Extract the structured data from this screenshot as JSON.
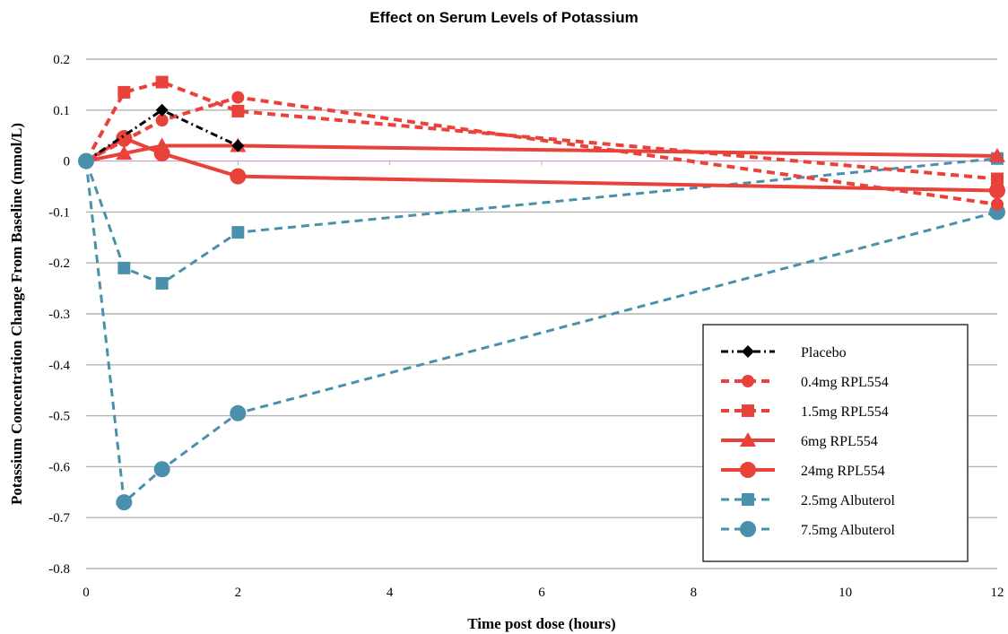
{
  "chart_data": {
    "type": "line",
    "title": "Effect on Serum Levels of Potassium",
    "xlabel": "Time post dose (hours)",
    "ylabel": "Potassium Concentration Change From Baseline (mmol/L)",
    "xlim": [
      0,
      12
    ],
    "ylim": [
      -0.8,
      0.2
    ],
    "xticks": [
      0,
      2,
      4,
      6,
      8,
      10,
      12
    ],
    "yticks": [
      0.2,
      0.1,
      0,
      -0.1,
      -0.2,
      -0.3,
      -0.4,
      -0.5,
      -0.6,
      -0.7,
      -0.8
    ],
    "xtick_labels": [
      "0",
      "2",
      "4",
      "6",
      "8",
      "10",
      "12"
    ],
    "ytick_labels": [
      "0.2",
      "0.1",
      "0",
      "-0.1",
      "-0.2",
      "-0.3",
      "-0.4",
      "-0.5",
      "-0.6",
      "-0.7",
      "-0.8"
    ],
    "grid": "horizontal",
    "legend_position": "bottom-right",
    "series": [
      {
        "name": "Placebo",
        "color": "#000000",
        "marker": "diamond",
        "dash": "dashdot",
        "x": [
          0,
          1,
          2
        ],
        "y": [
          0.0,
          0.1,
          0.03
        ]
      },
      {
        "name": "0.4mg RPL554",
        "color": "#e8423a",
        "marker": "circle",
        "dash": "dashed",
        "x": [
          0,
          0.5,
          1,
          2,
          12
        ],
        "y": [
          0.0,
          0.04,
          0.08,
          0.125,
          -0.085
        ]
      },
      {
        "name": "1.5mg RPL554",
        "color": "#e8423a",
        "marker": "square",
        "dash": "dashed",
        "x": [
          0,
          0.5,
          1,
          2,
          12
        ],
        "y": [
          0.0,
          0.135,
          0.155,
          0.098,
          -0.035
        ]
      },
      {
        "name": "6mg RPL554",
        "color": "#e8423a",
        "marker": "triangle",
        "dash": "solid",
        "x": [
          0,
          0.5,
          1,
          2,
          12
        ],
        "y": [
          0.0,
          0.015,
          0.03,
          0.03,
          0.01
        ]
      },
      {
        "name": "24mg RPL554",
        "color": "#e8423a",
        "marker": "circle-large",
        "dash": "solid",
        "x": [
          0,
          0.5,
          1,
          2,
          12
        ],
        "y": [
          0.0,
          0.045,
          0.015,
          -0.03,
          -0.058
        ]
      },
      {
        "name": "2.5mg Albuterol",
        "color": "#4a8fac",
        "marker": "square",
        "dash": "dashed",
        "x": [
          0,
          0.5,
          1,
          2,
          12
        ],
        "y": [
          0.0,
          -0.21,
          -0.24,
          -0.14,
          0.005
        ]
      },
      {
        "name": "7.5mg Albuterol",
        "color": "#4a8fac",
        "marker": "circle-large",
        "dash": "dashed",
        "x": [
          0,
          0.5,
          1,
          2,
          12
        ],
        "y": [
          0.0,
          -0.67,
          -0.605,
          -0.495,
          -0.1
        ]
      }
    ]
  }
}
